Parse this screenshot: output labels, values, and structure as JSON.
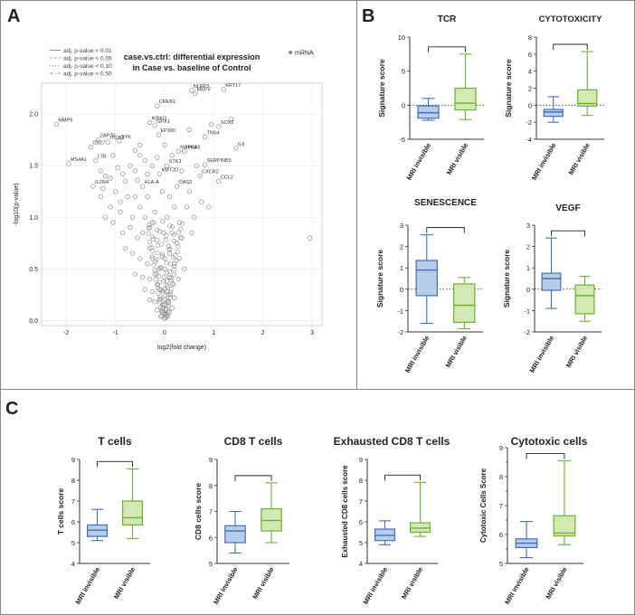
{
  "panel_letters": {
    "a": "A",
    "b": "B",
    "c": "C"
  },
  "colors": {
    "invisible": "#3e6fb8",
    "invisible_fill": "#b7cdea",
    "visible": "#6fb12d",
    "visible_fill": "#d2e9b4",
    "point": "#8a8a8a",
    "axis": "#333333"
  },
  "chart_data": [
    {
      "id": "volcano",
      "type": "scatter",
      "title": "case.vs.ctrl: differential expression in Case vs. baseline of Control",
      "title_lines": [
        "case.vs.ctrl: differential expression",
        "in Case vs. baseline of Control"
      ],
      "xlabel": "log2(fold change)",
      "ylabel": "-log10(p-value)",
      "xlim": [
        -2.5,
        3.2
      ],
      "ylim": [
        -0.05,
        2.3
      ],
      "xticks": [
        -2,
        -1,
        0,
        1,
        2,
        3
      ],
      "yticks": [
        0.0,
        0.5,
        1.0,
        1.5,
        2.0
      ],
      "ytick_labels": [
        "0.0",
        "0.5",
        "1.0",
        "1.5",
        "2.0"
      ],
      "legend_mrna": "mRNA",
      "legend_lines": [
        "adj. p-value < 0.01",
        "adj. p-value < 0.05",
        "adj. p-value < 0.10",
        "adj. p-value < 0.50"
      ],
      "gene_labels": [
        {
          "name": "MMP9",
          "x": -2.2,
          "y": 1.9
        },
        {
          "name": "ZAP70",
          "x": -1.35,
          "y": 1.75
        },
        {
          "name": "ITGB2",
          "x": -1.15,
          "y": 1.73
        },
        {
          "name": "SYK",
          "x": -0.92,
          "y": 1.74
        },
        {
          "name": "CD27",
          "x": -1.5,
          "y": 1.68
        },
        {
          "name": "LTB",
          "x": -1.4,
          "y": 1.55
        },
        {
          "name": "MS4A1",
          "x": -1.95,
          "y": 1.52
        },
        {
          "name": "IL2RA",
          "x": -1.45,
          "y": 1.3
        },
        {
          "name": "CREB1",
          "x": -0.15,
          "y": 2.08
        },
        {
          "name": "IKBKG",
          "x": -0.3,
          "y": 1.92
        },
        {
          "name": "GPX1",
          "x": -0.2,
          "y": 1.89
        },
        {
          "name": "EP300",
          "x": -0.12,
          "y": 1.8
        },
        {
          "name": "MAPK8",
          "x": 0.28,
          "y": 1.64
        },
        {
          "name": "STK3",
          "x": 0.05,
          "y": 1.5
        },
        {
          "name": "KMT2D",
          "x": -0.1,
          "y": 1.42
        },
        {
          "name": "OAS3",
          "x": 0.25,
          "y": 1.3
        },
        {
          "name": "ITGA5",
          "x": 0.4,
          "y": 1.64
        },
        {
          "name": "NLRP3",
          "x": 0.55,
          "y": 2.23
        },
        {
          "name": "MEFV",
          "x": 0.62,
          "y": 2.2
        },
        {
          "name": "KRT17",
          "x": 1.2,
          "y": 2.24
        },
        {
          "name": "SOX2",
          "x": 1.1,
          "y": 1.88
        },
        {
          "name": "TNS4",
          "x": 0.82,
          "y": 1.78
        },
        {
          "name": "IL6",
          "x": 1.45,
          "y": 1.67
        },
        {
          "name": "SERPINB5",
          "x": 0.82,
          "y": 1.51
        },
        {
          "name": "CXCR2",
          "x": 0.72,
          "y": 1.4
        },
        {
          "name": "CCL2",
          "x": 1.1,
          "y": 1.35
        },
        {
          "name": "HLA-A",
          "x": -0.45,
          "y": 1.3
        }
      ],
      "points": [
        [
          -2.2,
          1.9
        ],
        [
          -1.95,
          1.52
        ],
        [
          -1.4,
          1.55
        ],
        [
          -1.45,
          1.3
        ],
        [
          -1.35,
          1.75
        ],
        [
          -1.5,
          1.68
        ],
        [
          -1.15,
          1.73
        ],
        [
          -0.92,
          1.74
        ],
        [
          -1.3,
          1.45
        ],
        [
          -1.2,
          1.4
        ],
        [
          -1.1,
          1.38
        ],
        [
          -1.25,
          1.28
        ],
        [
          -1.05,
          1.6
        ],
        [
          -0.95,
          1.48
        ],
        [
          -0.85,
          1.42
        ],
        [
          -0.8,
          1.35
        ],
        [
          -0.7,
          1.5
        ],
        [
          -0.6,
          1.45
        ],
        [
          -0.55,
          1.36
        ],
        [
          -0.5,
          1.6
        ],
        [
          -0.45,
          1.3
        ],
        [
          -0.4,
          1.55
        ],
        [
          -0.35,
          1.42
        ],
        [
          -0.3,
          1.92
        ],
        [
          -0.25,
          1.5
        ],
        [
          -0.2,
          1.89
        ],
        [
          -0.15,
          2.08
        ],
        [
          -0.12,
          1.8
        ],
        [
          -0.1,
          1.42
        ],
        [
          0.05,
          1.5
        ],
        [
          0.28,
          1.64
        ],
        [
          0.25,
          1.3
        ],
        [
          0.4,
          1.64
        ],
        [
          0.55,
          2.23
        ],
        [
          0.62,
          2.2
        ],
        [
          1.2,
          2.24
        ],
        [
          1.1,
          1.88
        ],
        [
          0.82,
          1.78
        ],
        [
          1.45,
          1.67
        ],
        [
          0.82,
          1.51
        ],
        [
          0.72,
          1.4
        ],
        [
          1.1,
          1.35
        ],
        [
          2.95,
          0.8
        ],
        [
          -1.3,
          1.2
        ],
        [
          -1.1,
          1.1
        ],
        [
          -1.2,
          1.0
        ],
        [
          -0.9,
          1.15
        ],
        [
          -0.75,
          1.2
        ],
        [
          -0.65,
          1.0
        ],
        [
          -0.6,
          1.2
        ],
        [
          -0.5,
          1.1
        ],
        [
          -0.4,
          1.0
        ],
        [
          -0.35,
          1.2
        ],
        [
          -0.3,
          0.9
        ],
        [
          -0.2,
          1.05
        ],
        [
          0.1,
          1.2
        ],
        [
          0.2,
          1.1
        ],
        [
          0.3,
          0.95
        ],
        [
          0.45,
          1.1
        ],
        [
          0.5,
          1.25
        ],
        [
          0.6,
          1.0
        ],
        [
          0.75,
          1.15
        ],
        [
          0.9,
          1.1
        ],
        [
          -1.05,
          0.95
        ],
        [
          -0.85,
          0.85
        ],
        [
          -0.7,
          0.9
        ],
        [
          -0.55,
          0.8
        ],
        [
          -0.45,
          0.85
        ],
        [
          -0.3,
          0.7
        ],
        [
          -0.25,
          0.95
        ],
        [
          0.15,
          0.85
        ],
        [
          0.25,
          0.75
        ],
        [
          0.35,
          0.8
        ],
        [
          0.55,
          0.85
        ],
        [
          -0.8,
          0.7
        ],
        [
          -0.65,
          0.65
        ],
        [
          -0.5,
          0.6
        ],
        [
          -0.35,
          0.55
        ],
        [
          -0.25,
          0.6
        ],
        [
          0.1,
          0.65
        ],
        [
          0.2,
          0.55
        ],
        [
          0.3,
          0.6
        ],
        [
          0.4,
          0.5
        ],
        [
          -0.6,
          0.45
        ],
        [
          -0.45,
          0.42
        ],
        [
          -0.3,
          0.4
        ],
        [
          -0.2,
          0.45
        ],
        [
          -0.15,
          0.35
        ],
        [
          0.1,
          0.42
        ],
        [
          0.18,
          0.35
        ],
        [
          0.28,
          0.4
        ],
        [
          -0.4,
          0.3
        ],
        [
          -0.25,
          0.28
        ],
        [
          -0.1,
          0.3
        ],
        [
          0.05,
          0.28
        ],
        [
          0.12,
          0.25
        ],
        [
          0.2,
          0.22
        ],
        [
          -0.3,
          0.2
        ],
        [
          -0.2,
          0.18
        ],
        [
          -0.1,
          0.2
        ],
        [
          0.0,
          0.15
        ],
        [
          0.08,
          0.18
        ],
        [
          0.15,
          0.12
        ],
        [
          -0.15,
          0.1
        ],
        [
          -0.05,
          0.08
        ],
        [
          0.02,
          0.06
        ],
        [
          0.06,
          0.04
        ],
        [
          -0.08,
          0.04
        ],
        [
          0.0,
          0.02
        ],
        [
          -0.03,
          0.12
        ],
        [
          0.1,
          0.08
        ],
        [
          -0.5,
          1.7
        ],
        [
          -0.6,
          1.65
        ],
        [
          0.0,
          1.7
        ],
        [
          0.15,
          1.6
        ],
        [
          -0.15,
          1.58
        ],
        [
          0.35,
          1.45
        ],
        [
          0.65,
          1.5
        ],
        [
          0.95,
          1.9
        ],
        [
          1.35,
          1.95
        ],
        [
          0.5,
          1.85
        ],
        [
          -1.0,
          1.25
        ],
        [
          -0.9,
          1.05
        ],
        [
          -0.05,
          1.25
        ],
        [
          0.05,
          1.0
        ],
        [
          -0.15,
          0.78
        ],
        [
          0.0,
          0.5
        ],
        [
          -0.05,
          0.62
        ],
        [
          0.05,
          0.38
        ],
        [
          -0.12,
          0.5
        ],
        [
          0.0,
          0.3
        ],
        [
          -0.02,
          0.85
        ],
        [
          0.08,
          0.72
        ]
      ]
    },
    {
      "id": "tcr",
      "type": "box",
      "title": "TCR",
      "ylabel": "Signature score",
      "ylim": [
        -5,
        10
      ],
      "yticks": [
        -5,
        0,
        5,
        10
      ],
      "ytick_labels": [
        "-5",
        "0",
        "5",
        "10"
      ],
      "categories": [
        "MRI invisible",
        "MRI visible"
      ],
      "boxes": [
        {
          "min": -2.2,
          "q1": -1.9,
          "median": -1.1,
          "q3": -0.1,
          "max": 1.0
        },
        {
          "min": -2.1,
          "q1": -0.7,
          "median": 0.3,
          "q3": 2.5,
          "max": 7.5
        }
      ]
    },
    {
      "id": "cyto",
      "type": "box",
      "title": "CYTOTOXICITY",
      "ylabel": "Signature score",
      "ylim": [
        -4,
        8
      ],
      "yticks": [
        -4,
        -2,
        0,
        2,
        4,
        6,
        8
      ],
      "ytick_labels": [
        "-4",
        "-2",
        "0",
        "2",
        "4",
        "6",
        "8"
      ],
      "categories": [
        "MRI invisible",
        "MRI visible"
      ],
      "boxes": [
        {
          "min": -2.0,
          "q1": -1.3,
          "median": -0.8,
          "q3": -0.5,
          "max": 1.0
        },
        {
          "min": -1.2,
          "q1": -0.1,
          "median": 0.2,
          "q3": 1.8,
          "max": 6.3
        }
      ]
    },
    {
      "id": "senescence",
      "type": "box",
      "title": "SENESCENCE",
      "ylabel": "Signature score",
      "ylim": [
        -2,
        3
      ],
      "yticks": [
        -2,
        -1,
        0,
        1,
        2,
        3
      ],
      "ytick_labels": [
        "-2",
        "-1",
        "0",
        "1",
        "2",
        "3"
      ],
      "categories": [
        "MRI invisible",
        "MRI visible"
      ],
      "boxes": [
        {
          "min": -1.6,
          "q1": -0.3,
          "median": 0.9,
          "q3": 1.35,
          "max": 2.55
        },
        {
          "min": -1.85,
          "q1": -1.55,
          "median": -0.75,
          "q3": 0.25,
          "max": 0.55
        }
      ]
    },
    {
      "id": "vegf",
      "type": "box",
      "title": "VEGF",
      "ylabel": "Signature score",
      "ylim": [
        -2,
        3
      ],
      "yticks": [
        -2,
        -1,
        0,
        1,
        2,
        3
      ],
      "ytick_labels": [
        "-2",
        "-1",
        "0",
        "1",
        "2",
        "3"
      ],
      "categories": [
        "MRI invisible",
        "MRI visible"
      ],
      "boxes": [
        {
          "min": -0.9,
          "q1": -0.05,
          "median": 0.5,
          "q3": 0.75,
          "max": 2.4
        },
        {
          "min": -1.5,
          "q1": -1.15,
          "median": -0.3,
          "q3": 0.2,
          "max": 0.6
        }
      ]
    },
    {
      "id": "tcells",
      "type": "box",
      "title": "T cells",
      "ylabel": "T cells score",
      "ylim": [
        4,
        9
      ],
      "yticks": [
        4,
        5,
        6,
        7,
        8,
        9
      ],
      "ytick_labels": [
        "4",
        "5",
        "6",
        "7",
        "8",
        "9"
      ],
      "categories": [
        "MRI invisible",
        "MRI visible"
      ],
      "boxes": [
        {
          "min": 5.1,
          "q1": 5.3,
          "median": 5.6,
          "q3": 5.85,
          "max": 6.6
        },
        {
          "min": 5.2,
          "q1": 5.85,
          "median": 6.2,
          "q3": 7.0,
          "max": 8.55
        }
      ]
    },
    {
      "id": "cd8",
      "type": "box",
      "title": "CD8 T cells",
      "ylabel": "CD8 cells score",
      "ylim": [
        5,
        9
      ],
      "yticks": [
        5,
        6,
        7,
        8,
        9
      ],
      "ytick_labels": [
        "5",
        "6",
        "7",
        "8",
        "9"
      ],
      "categories": [
        "MRI invisible",
        "MRI visible"
      ],
      "boxes": [
        {
          "min": 5.4,
          "q1": 5.8,
          "median": 6.25,
          "q3": 6.45,
          "max": 7.0
        },
        {
          "min": 5.8,
          "q1": 6.25,
          "median": 6.65,
          "q3": 7.1,
          "max": 8.1
        }
      ]
    },
    {
      "id": "exh",
      "type": "box",
      "title": "Exhausted CD8 T cells",
      "ylabel": "Exhausted CD8 cells score",
      "ylim": [
        4,
        9
      ],
      "yticks": [
        4,
        5,
        6,
        7,
        8,
        9
      ],
      "ytick_labels": [
        "4",
        "5",
        "6",
        "7",
        "8",
        "9"
      ],
      "categories": [
        "MRI invisible",
        "MRI visible"
      ],
      "boxes": [
        {
          "min": 4.9,
          "q1": 5.1,
          "median": 5.35,
          "q3": 5.65,
          "max": 6.05
        },
        {
          "min": 5.3,
          "q1": 5.5,
          "median": 5.7,
          "q3": 5.95,
          "max": 7.9
        }
      ]
    },
    {
      "id": "cytotoxic",
      "type": "box",
      "title": "Cytotoxic cells",
      "ylabel": "Cytotoxic Cells Score",
      "ylim": [
        5,
        9
      ],
      "yticks": [
        5,
        5.5,
        6,
        6.5,
        7,
        7.5,
        8,
        8.5,
        9
      ],
      "ytick_labels": [
        "5",
        "",
        "6",
        "",
        "7",
        "",
        "8",
        "",
        "9"
      ],
      "categories": [
        "MRI invisible",
        "MRI visible"
      ],
      "boxes": [
        {
          "min": 5.2,
          "q1": 5.55,
          "median": 5.7,
          "q3": 5.85,
          "max": 6.45
        },
        {
          "min": 5.65,
          "q1": 5.95,
          "median": 6.05,
          "q3": 6.65,
          "max": 8.55
        }
      ]
    }
  ]
}
